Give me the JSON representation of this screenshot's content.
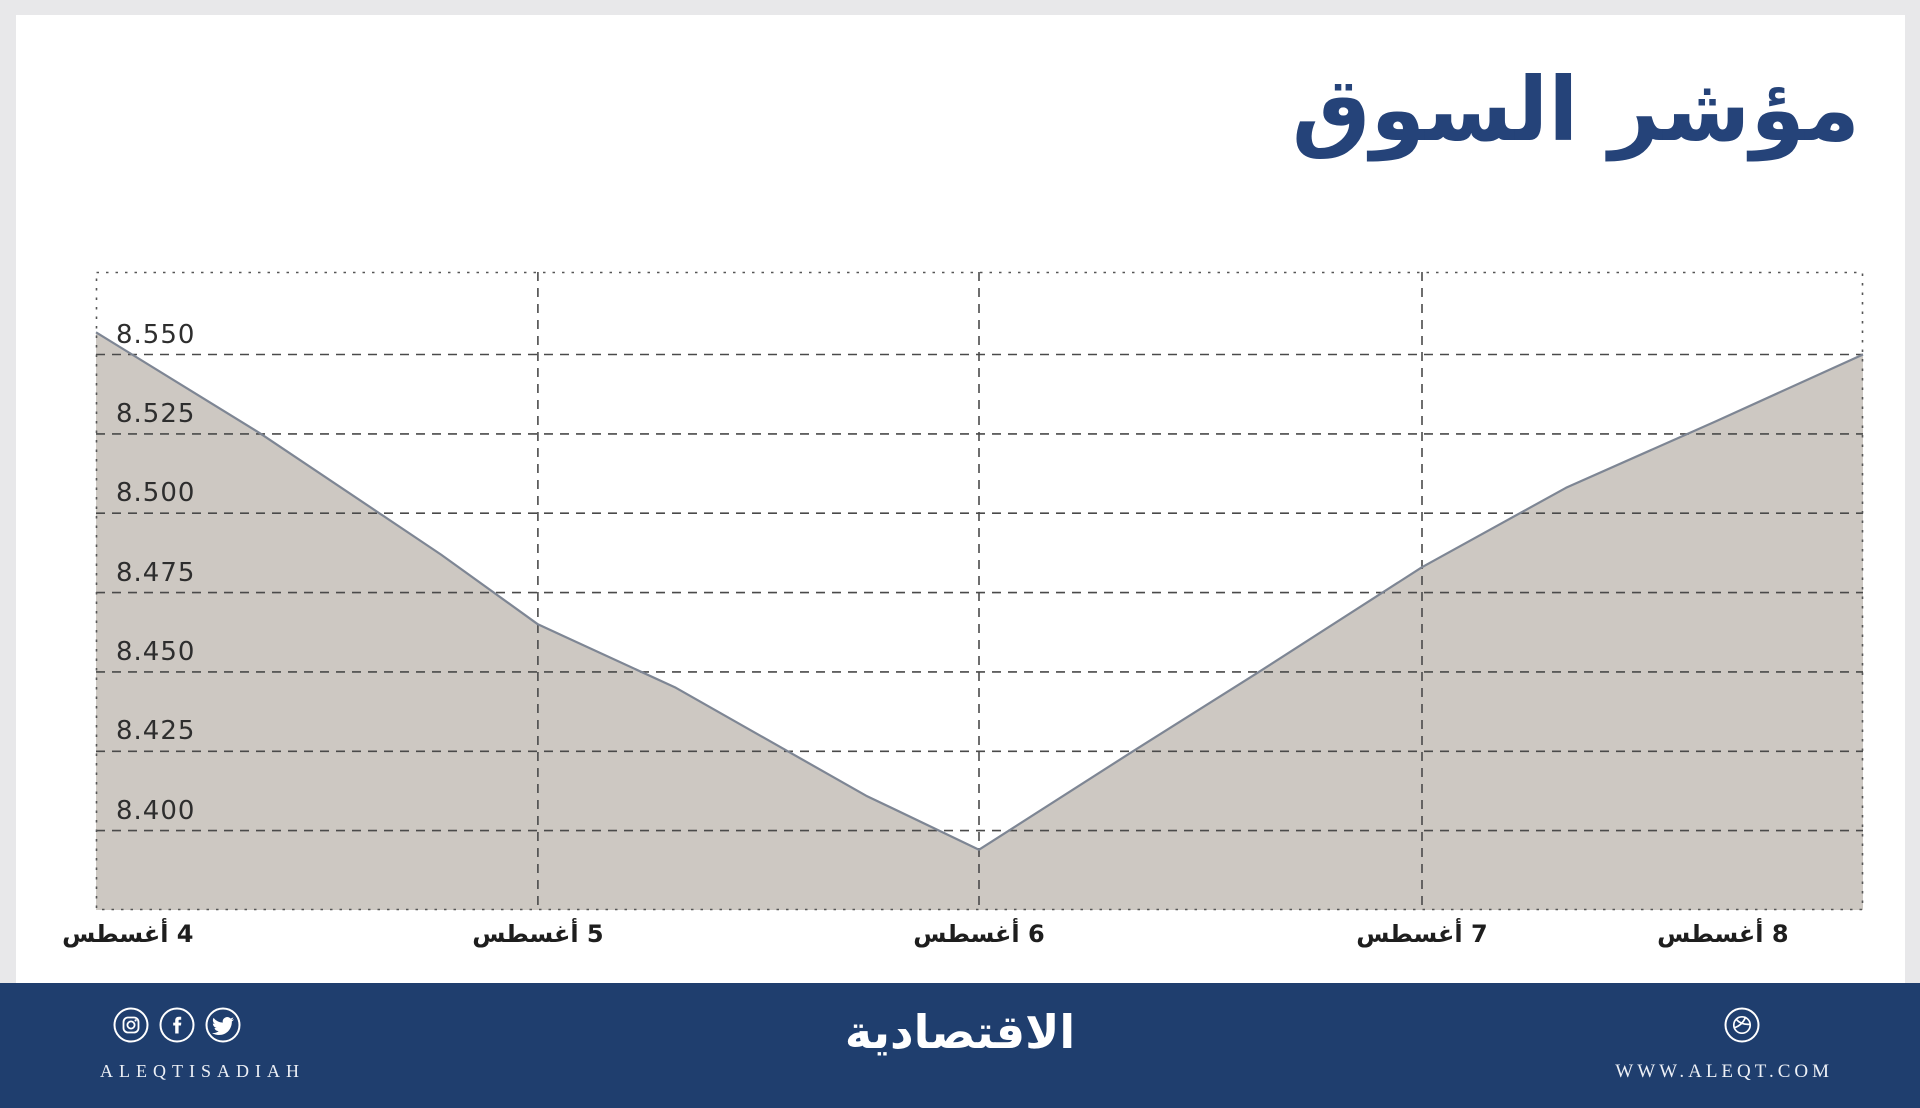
{
  "title": "مؤشر السوق",
  "colors": {
    "page_bg": "#E8E8EA",
    "card_bg": "#FFFFFF",
    "title_navy": "#254379",
    "footer_navy": "#1F3E6E",
    "area_fill": "#CDC8C2",
    "line_stroke": "#7E8694",
    "grid_color": "#4A4A4A",
    "border_dot_color": "#555555",
    "tick_label_color": "#2E2E2E"
  },
  "chart_data": {
    "type": "area",
    "title": "مؤشر السوق",
    "categories": [
      "4 أغسطس",
      "5 أغسطس",
      "6 أغسطس",
      "7 أغسطس",
      "8 أغسطس"
    ],
    "values": [
      8557,
      8465,
      8394,
      8483,
      8550
    ],
    "ylabel": "",
    "xlabel": "",
    "ylim": [
      8375,
      8576
    ],
    "grid": "dashed",
    "y_ticks": [
      {
        "value": 8550,
        "label": "8.550"
      },
      {
        "value": 8525,
        "label": "8.525"
      },
      {
        "value": 8500,
        "label": "8.500"
      },
      {
        "value": 8475,
        "label": "8.475"
      },
      {
        "value": 8450,
        "label": "8.450"
      },
      {
        "value": 8425,
        "label": "8.425"
      },
      {
        "value": 8400,
        "label": "8.400"
      }
    ],
    "x_gridline_ts": [
      0.2501,
      0.4997,
      0.7504
    ],
    "x_labels": [
      {
        "label": "4 أغسطس",
        "t": 0.018
      },
      {
        "label": "5 أغسطس",
        "t": 0.2501
      },
      {
        "label": "6 أغسطس",
        "t": 0.4997
      },
      {
        "label": "7 أغسطس",
        "t": 0.7504
      },
      {
        "label": "8 أغسطس",
        "t": 0.9207
      }
    ],
    "polyline": [
      {
        "t": 0.0,
        "v": 8557
      },
      {
        "t": 0.0934,
        "v": 8525
      },
      {
        "t": 0.1952,
        "v": 8487
      },
      {
        "t": 0.2501,
        "v": 8465
      },
      {
        "t": 0.3282,
        "v": 8445
      },
      {
        "t": 0.4358,
        "v": 8411
      },
      {
        "t": 0.4997,
        "v": 8394
      },
      {
        "t": 0.5868,
        "v": 8425
      },
      {
        "t": 0.6581,
        "v": 8450
      },
      {
        "t": 0.7504,
        "v": 8483
      },
      {
        "t": 0.8319,
        "v": 8508
      },
      {
        "t": 0.9168,
        "v": 8529
      },
      {
        "t": 1.0,
        "v": 8550
      }
    ]
  },
  "footer": {
    "brand_latin": "ALEQTISADIAH",
    "logo_text": "الاقتصادية",
    "website": "WWW.ALEQT.COM",
    "social_icons": [
      "instagram-icon",
      "facebook-icon",
      "twitter-icon"
    ],
    "site_icon": "dribbble-icon"
  }
}
